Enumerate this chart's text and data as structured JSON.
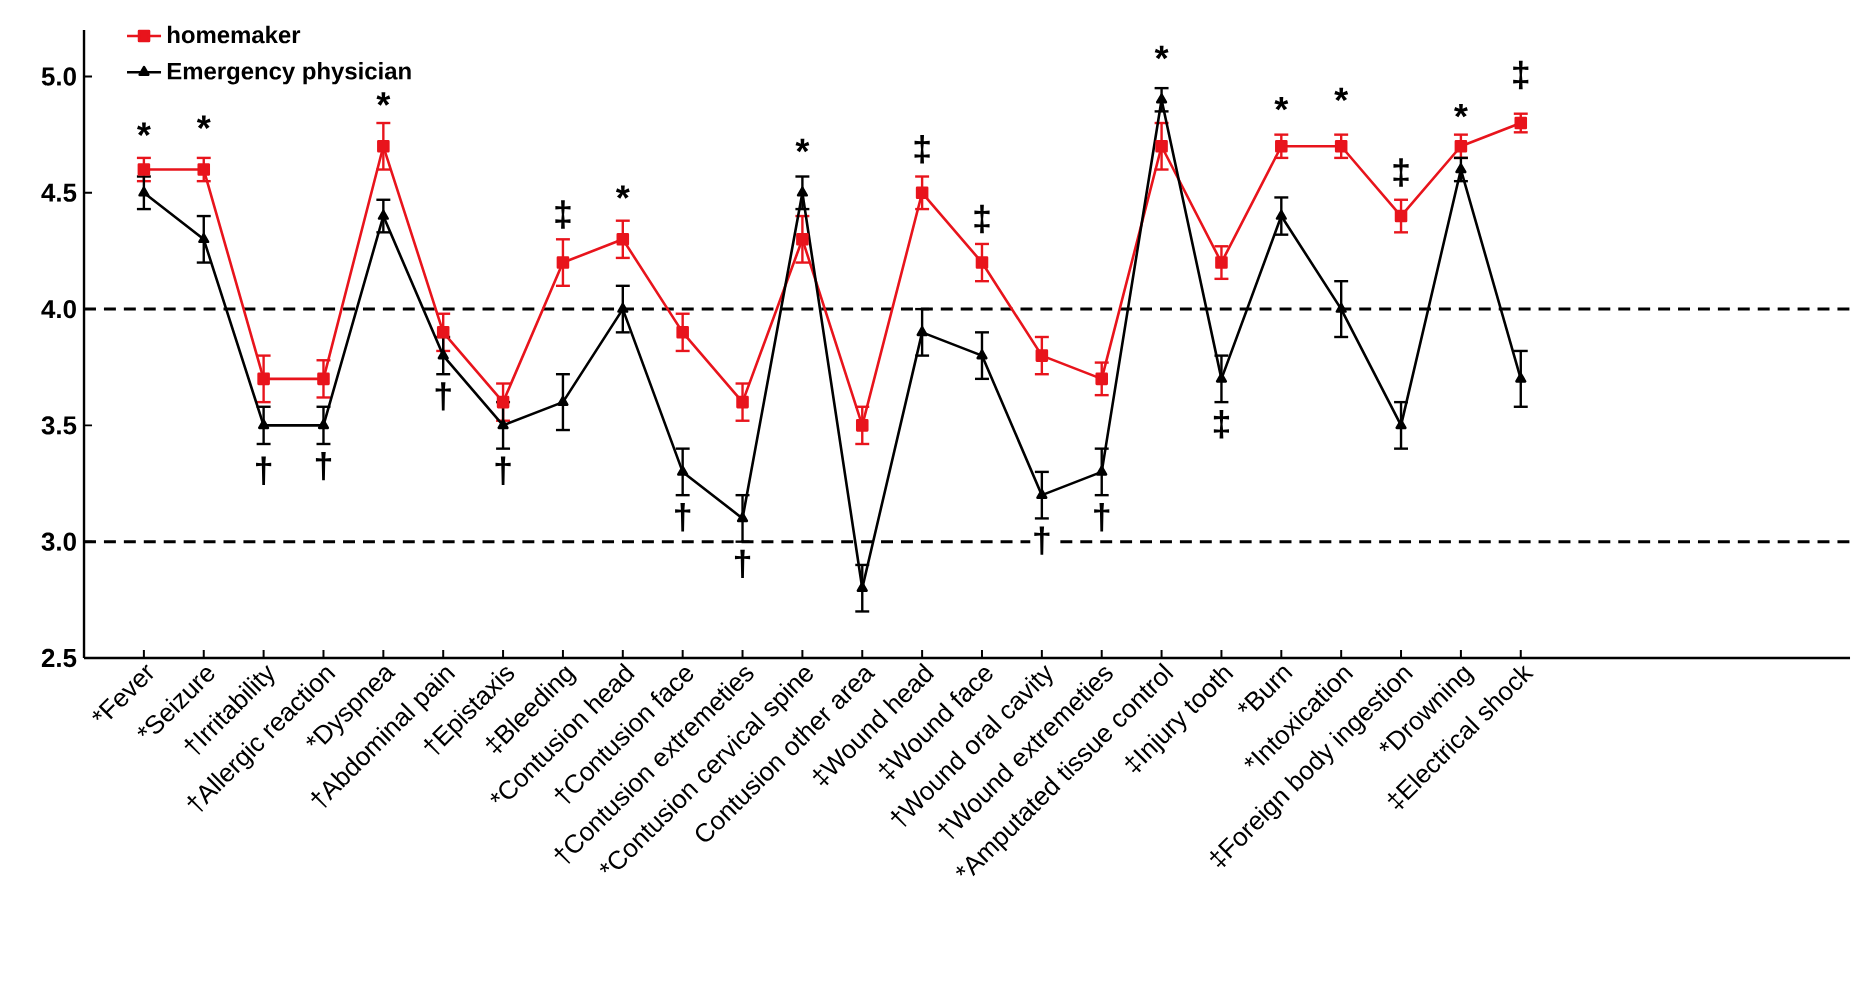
{
  "chart_data": {
    "type": "line",
    "categories": [
      "*Fever",
      "*Seizure",
      "†Irritability",
      "†Allergic reaction",
      "*Dyspnea",
      "†Abdominal pain",
      "†Epistaxis",
      "‡Bleeding",
      "*Contusion head",
      "†Contusion face",
      "†Contusion extremeties",
      "*Contusion cervical spine",
      "Contusion other area",
      "‡Wound head",
      "‡Wound face",
      "†Wound oral cavity",
      "†Wound extremeties",
      "*Amputated tissue control",
      "‡Injury tooth",
      "*Burn",
      "*Intoxication",
      "‡Foreign body ingestion",
      "*Drowning",
      "‡Electrical shock"
    ],
    "series": [
      {
        "name": "homemaker",
        "color": "#e8141c",
        "marker": "square",
        "values": [
          4.6,
          4.6,
          3.7,
          3.7,
          4.7,
          3.9,
          3.6,
          4.2,
          4.3,
          3.9,
          3.6,
          4.3,
          3.5,
          4.5,
          4.2,
          3.8,
          3.7,
          4.7,
          4.2,
          4.7,
          4.7,
          4.4,
          4.7,
          4.8
        ],
        "errors": [
          0.05,
          0.05,
          0.1,
          0.08,
          0.1,
          0.08,
          0.08,
          0.1,
          0.08,
          0.08,
          0.08,
          0.1,
          0.08,
          0.07,
          0.08,
          0.08,
          0.07,
          0.1,
          0.07,
          0.05,
          0.05,
          0.07,
          0.05,
          0.04
        ]
      },
      {
        "name": "Emergency physician",
        "color": "#000000",
        "marker": "triangle",
        "values": [
          4.5,
          4.3,
          3.5,
          3.5,
          4.4,
          3.8,
          3.5,
          3.6,
          4.0,
          3.3,
          3.1,
          4.5,
          2.8,
          3.9,
          3.8,
          3.2,
          3.3,
          4.9,
          3.7,
          4.4,
          4.0,
          3.5,
          4.6,
          3.7
        ],
        "errors": [
          0.07,
          0.1,
          0.08,
          0.08,
          0.07,
          0.08,
          0.1,
          0.12,
          0.1,
          0.1,
          0.1,
          0.07,
          0.1,
          0.1,
          0.1,
          0.1,
          0.1,
          0.05,
          0.1,
          0.08,
          0.12,
          0.1,
          0.05,
          0.12
        ]
      }
    ],
    "ylim": [
      2.5,
      5.2
    ],
    "yticks": [
      {
        "value": 2.5,
        "label": "2.5"
      },
      {
        "value": 3.0,
        "label": "3.0"
      },
      {
        "value": 3.5,
        "label": "3.5"
      },
      {
        "value": 4.0,
        "label": "4.0"
      },
      {
        "value": 4.5,
        "label": "4.5"
      },
      {
        "value": 5.0,
        "label": "5.0"
      }
    ],
    "ref_lines": [
      {
        "axis": "y",
        "value": 4.0,
        "color": "#000000",
        "line_style": "dashed"
      },
      {
        "axis": "y",
        "value": 3.0,
        "color": "#000000",
        "line_style": "dashed"
      }
    ],
    "legend": "top left",
    "grid": false,
    "line_style": "solid",
    "annotations": [
      {
        "text": "*",
        "x": "*Fever",
        "y": 4.6
      },
      {
        "text": "*",
        "x": "*Seizure",
        "y": 4.6
      },
      {
        "text": "†",
        "x": "†Irritability",
        "y": 3.5
      },
      {
        "text": "†",
        "x": "†Allergic reaction",
        "y": 3.5
      },
      {
        "text": "*",
        "x": "*Dyspnea",
        "y": 4.7
      },
      {
        "text": "†",
        "x": "†Abdominal pain",
        "y": 3.8
      },
      {
        "text": "†",
        "x": "†Epistaxis",
        "y": 3.5
      },
      {
        "text": "‡",
        "x": "‡Bleeding",
        "y": 4.2
      },
      {
        "text": "*",
        "x": "*Contusion head",
        "y": 4.3
      },
      {
        "text": "†",
        "x": "†Contusion face",
        "y": 3.3
      },
      {
        "text": "†",
        "x": "†Contusion extremeties",
        "y": 3.1
      },
      {
        "text": "*",
        "x": "*Contusion cervical spine",
        "y": 4.5
      },
      {
        "text": "‡",
        "x": "‡Wound head",
        "y": 4.5
      },
      {
        "text": "‡",
        "x": "‡Wound face",
        "y": 4.2
      },
      {
        "text": "†",
        "x": "†Wound oral cavity",
        "y": 3.2
      },
      {
        "text": "†",
        "x": "†Wound extremeties",
        "y": 3.3
      },
      {
        "text": "*",
        "x": "*Amputated tissue control",
        "y": 4.9
      },
      {
        "text": "‡",
        "x": "‡Injury tooth",
        "y": 3.7
      },
      {
        "text": "*",
        "x": "*Burn",
        "y": 4.7
      },
      {
        "text": "*",
        "x": "*Intoxication",
        "y": 4.7
      },
      {
        "text": "‡",
        "x": "‡Foreign body ingestion",
        "y": 4.4
      },
      {
        "text": "*",
        "x": "*Drowning",
        "y": 4.7
      },
      {
        "text": "‡",
        "x": "‡Electrical shock",
        "y": 4.8
      }
    ]
  }
}
